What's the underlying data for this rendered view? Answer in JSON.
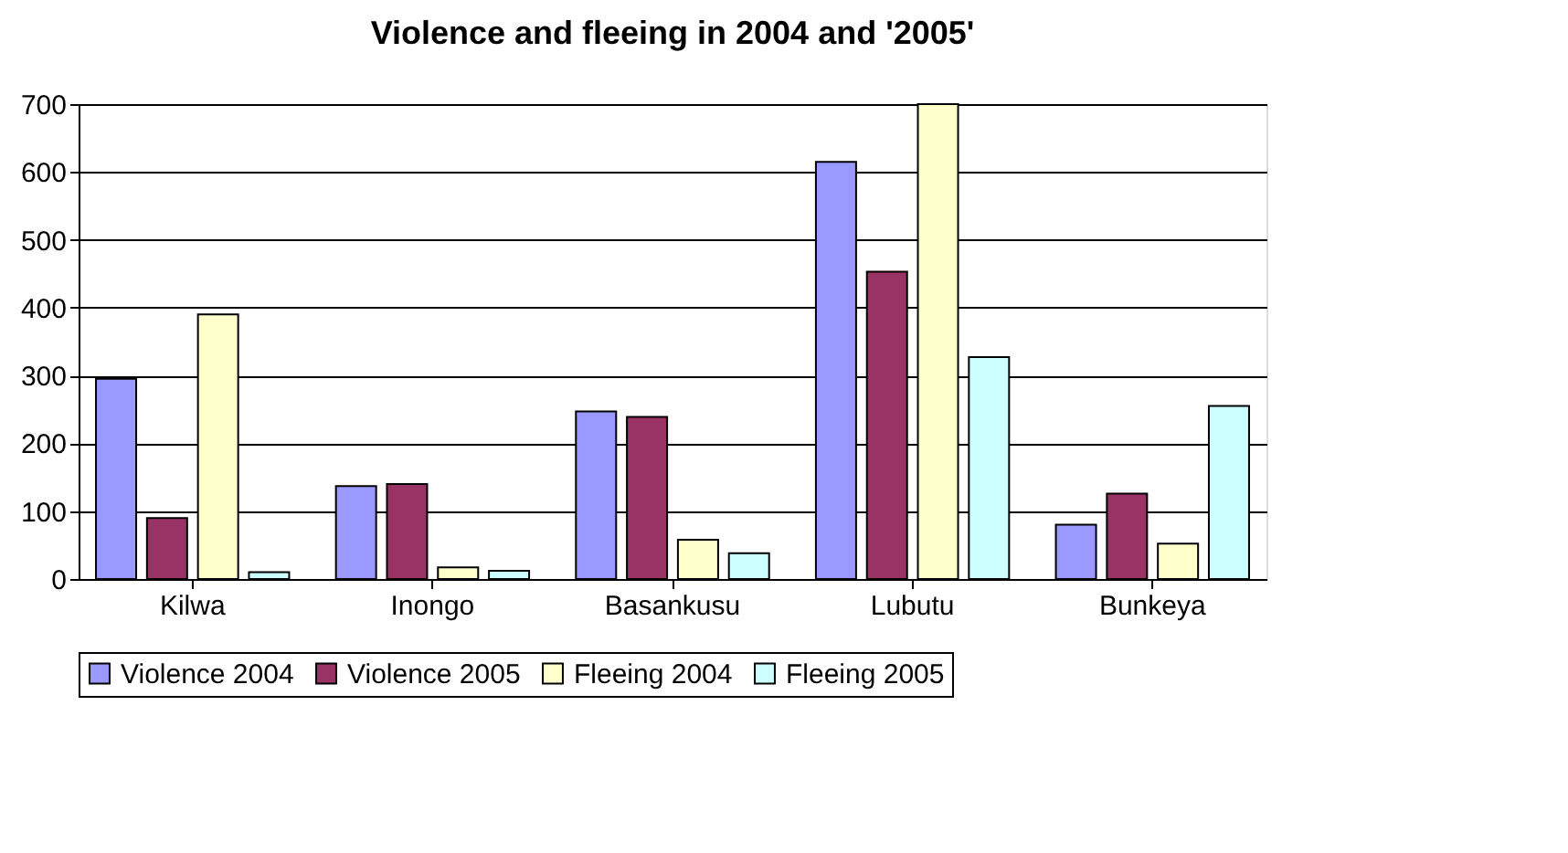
{
  "chart_data": {
    "type": "bar",
    "title": "Violence and fleeing in 2004 and '2005'",
    "categories": [
      "Kilwa",
      "Inongo",
      "Basankusu",
      "Lubutu",
      "Bunkeya"
    ],
    "series": [
      {
        "name": "Violence 2004",
        "color": "#9999ff",
        "values": [
          295,
          137,
          247,
          615,
          80
        ]
      },
      {
        "name": "Violence 2005",
        "color": "#993366",
        "values": [
          90,
          140,
          239,
          453,
          126
        ]
      },
      {
        "name": "Fleeing 2004",
        "color": "#ffffcc",
        "values": [
          390,
          17,
          58,
          700,
          52
        ]
      },
      {
        "name": "Fleeing 2005",
        "color": "#ccffff",
        "values": [
          10,
          12,
          38,
          327,
          255
        ]
      }
    ],
    "ylim": [
      0,
      700
    ],
    "yticks": [
      0,
      100,
      200,
      300,
      400,
      500,
      600,
      700
    ],
    "grid": "y",
    "legend": "bottom"
  }
}
